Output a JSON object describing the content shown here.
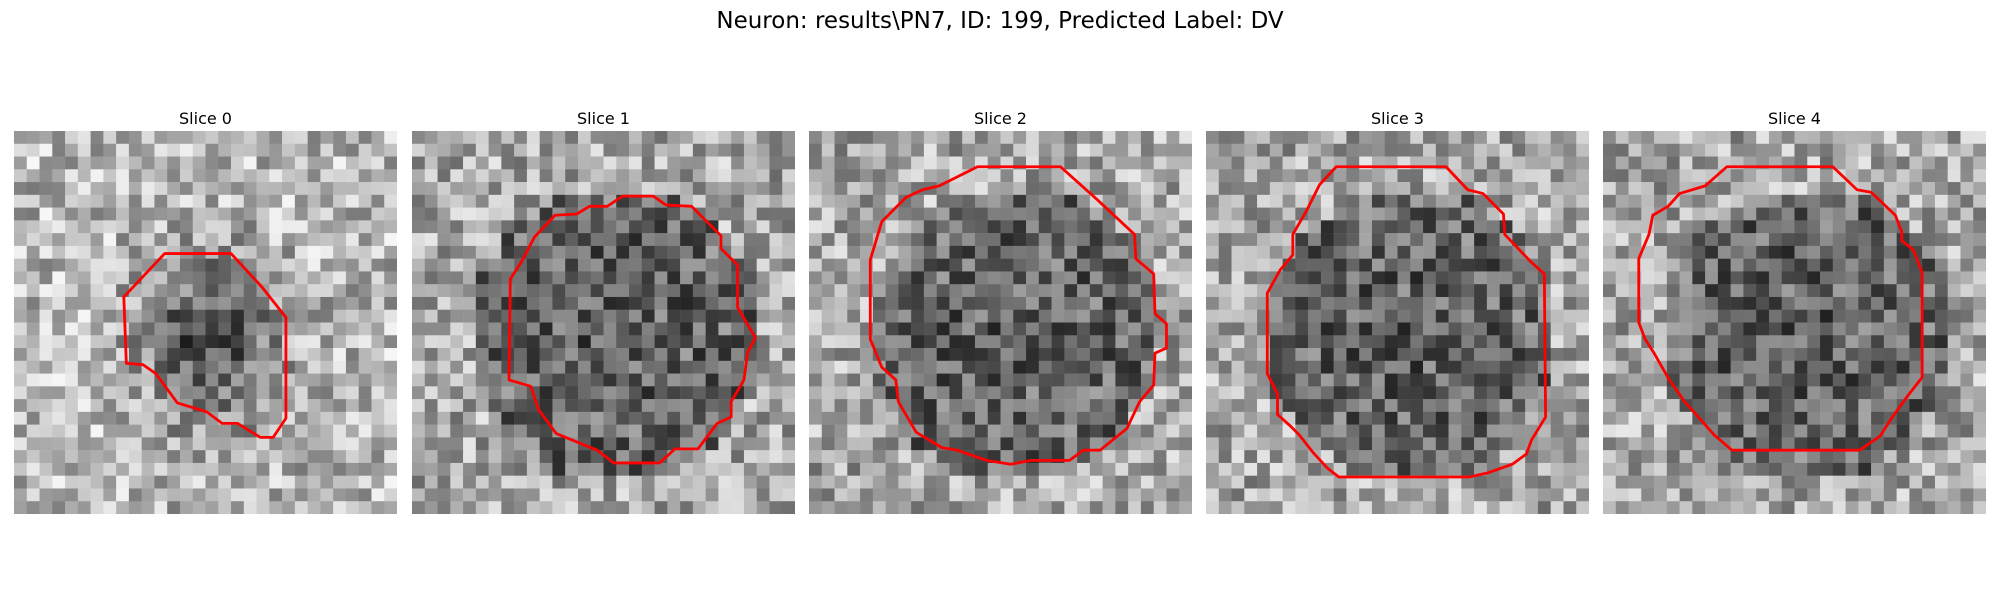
{
  "figure": {
    "title": "Neuron: results\\PN7, ID: 199, Predicted Label: DV",
    "contour_color": "#ff0000"
  },
  "slices": [
    {
      "title": "Slice 0"
    },
    {
      "title": "Slice 1"
    },
    {
      "title": "Slice 2"
    },
    {
      "title": "Slice 3"
    },
    {
      "title": "Slice 4"
    }
  ]
}
